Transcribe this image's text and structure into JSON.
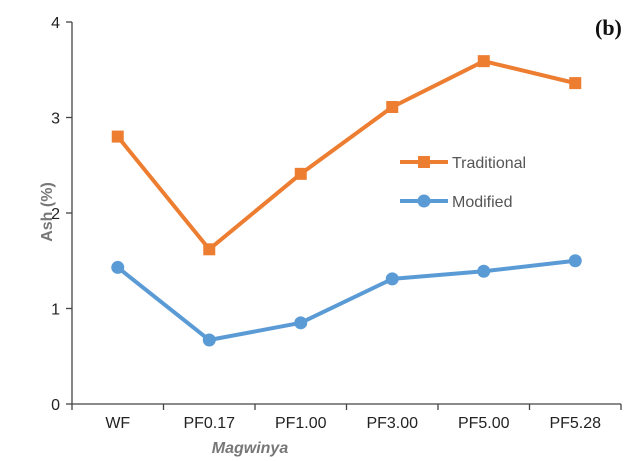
{
  "panel_label": "(b)",
  "colors": {
    "traditional": "#ED7D31",
    "modified": "#5B9BD5",
    "axis": "#444444"
  },
  "chart_data": {
    "type": "line",
    "categories": [
      "WF",
      "PF0.17",
      "PF1.00",
      "PF3.00",
      "PF5.00",
      "PF5.28"
    ],
    "series": [
      {
        "name": "Traditional",
        "marker": "square",
        "values": [
          2.8,
          1.62,
          2.41,
          3.11,
          3.59,
          3.36
        ]
      },
      {
        "name": "Modified",
        "marker": "circle",
        "values": [
          1.43,
          0.67,
          0.85,
          1.31,
          1.39,
          1.5
        ]
      }
    ],
    "xlabel": "Magwinya",
    "ylabel": "Ash (%)",
    "ylim": [
      0,
      4
    ],
    "yticks": [
      "0",
      "1",
      "2",
      "3",
      "4"
    ],
    "grid": false,
    "legend_position": "center-right"
  }
}
